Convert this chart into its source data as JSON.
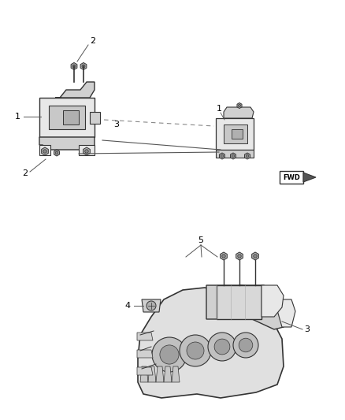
{
  "background_color": "#ffffff",
  "fig_width": 4.38,
  "fig_height": 5.33,
  "dpi": 100,
  "line_color": "#333333",
  "gray_fill": "#e8e8e8",
  "dark_fill": "#b0b0b0",
  "mid_fill": "#d0d0d0"
}
